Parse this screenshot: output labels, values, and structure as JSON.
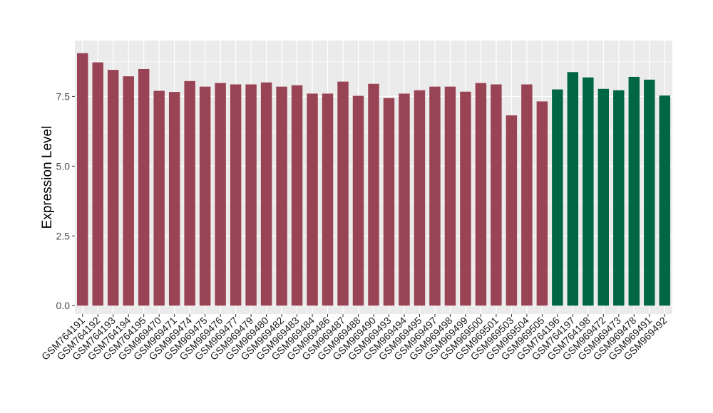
{
  "chart_data": {
    "type": "bar",
    "title": "",
    "xlabel": "",
    "ylabel": "Expression Level",
    "ylim": [
      -0.3,
      9.5
    ],
    "yticks": [
      "0.0",
      "2.5",
      "5.0",
      "7.5"
    ],
    "yticks_values": [
      0,
      2.5,
      5.0,
      7.5
    ],
    "grid": true,
    "legend": "none",
    "colors": {
      "group1": "#994455",
      "group2": "#006644",
      "panel": "#ebebeb",
      "grid": "#ffffff"
    },
    "categories": [
      "GSM764191",
      "GSM764192",
      "GSM764193",
      "GSM764194",
      "GSM764195",
      "GSM969470",
      "GSM969471",
      "GSM969474",
      "GSM969475",
      "GSM969476",
      "GSM969477",
      "GSM969479",
      "GSM969480",
      "GSM969482",
      "GSM969483",
      "GSM969484",
      "GSM969486",
      "GSM969487",
      "GSM969488",
      "GSM969490",
      "GSM969493",
      "GSM969494",
      "GSM969495",
      "GSM969497",
      "GSM969498",
      "GSM969499",
      "GSM969500",
      "GSM969501",
      "GSM969503",
      "GSM969504",
      "GSM969505",
      "GSM764196",
      "GSM764197",
      "GSM764198",
      "GSM969472",
      "GSM969473",
      "GSM969478",
      "GSM969491",
      "GSM969492"
    ],
    "values": [
      9.05,
      8.72,
      8.45,
      8.22,
      8.48,
      7.7,
      7.66,
      8.05,
      7.85,
      7.98,
      7.93,
      7.93,
      8.0,
      7.85,
      7.9,
      7.6,
      7.6,
      8.03,
      7.52,
      7.95,
      7.44,
      7.6,
      7.72,
      7.85,
      7.85,
      7.67,
      7.98,
      7.93,
      6.82,
      7.93,
      7.32,
      7.75,
      8.37,
      8.18,
      7.77,
      7.72,
      8.2,
      8.1,
      7.53
    ],
    "groups": [
      1,
      1,
      1,
      1,
      1,
      1,
      1,
      1,
      1,
      1,
      1,
      1,
      1,
      1,
      1,
      1,
      1,
      1,
      1,
      1,
      1,
      1,
      1,
      1,
      1,
      1,
      1,
      1,
      1,
      1,
      1,
      2,
      2,
      2,
      2,
      2,
      2,
      2,
      2
    ]
  }
}
